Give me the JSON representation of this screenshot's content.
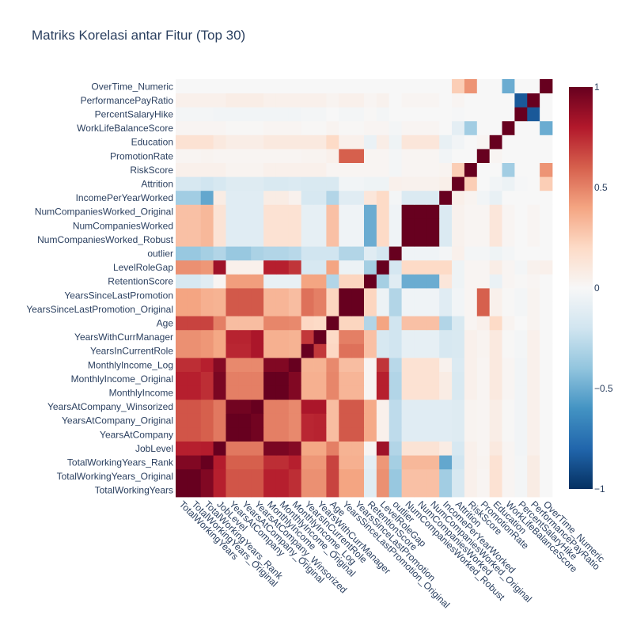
{
  "chart_data": {
    "type": "heatmap",
    "title": "Matriks Korelasi antar Fitur (Top 30)",
    "x_labels": [
      "TotalWorkingYears",
      "TotalWorkingYears_Original",
      "TotalWorkingYears_Rank",
      "JobLevel",
      "YearsAtCompany",
      "YearsAtCompany_Original",
      "YearsAtCompany_Winsorized",
      "MonthlyIncome",
      "MonthlyIncome_Original",
      "MonthlyIncome_Log",
      "YearsInCurrentRole",
      "YearsWithCurrManager",
      "Age",
      "YearsSinceLastPromotion_Original",
      "YearsSinceLastPromotion",
      "RetentionScore",
      "LevelRoleGap",
      "outlier",
      "NumCompaniesWorked_Robust",
      "NumCompaniesWorked",
      "NumCompaniesWorked_Original",
      "IncomePerYearWorked",
      "Attrition",
      "RiskScore",
      "PromotionRate",
      "Education",
      "WorkLifeBalanceScore",
      "PercentSalaryHike",
      "PerformancePayRatio",
      "OverTime_Numeric"
    ],
    "y_labels": [
      "TotalWorkingYears",
      "TotalWorkingYears_Original",
      "TotalWorkingYears_Rank",
      "JobLevel",
      "YearsAtCompany",
      "YearsAtCompany_Original",
      "YearsAtCompany_Winsorized",
      "MonthlyIncome",
      "MonthlyIncome_Original",
      "MonthlyIncome_Log",
      "YearsInCurrentRole",
      "YearsWithCurrManager",
      "Age",
      "YearsSinceLastPromotion_Original",
      "YearsSinceLastPromotion",
      "RetentionScore",
      "LevelRoleGap",
      "outlier",
      "NumCompaniesWorked_Robust",
      "NumCompaniesWorked",
      "NumCompaniesWorked_Original",
      "IncomePerYearWorked",
      "Attrition",
      "RiskScore",
      "PromotionRate",
      "Education",
      "WorkLifeBalanceScore",
      "PercentSalaryHike",
      "PerformancePayRatio",
      "OverTime_Numeric"
    ],
    "z": [
      [
        1,
        1,
        0.93,
        0.78,
        0.63,
        0.63,
        0.63,
        0.78,
        0.78,
        0.74,
        0.46,
        0.46,
        0.68,
        0.4,
        0.4,
        -0.12,
        0.46,
        -0.38,
        0.3,
        0.3,
        0.3,
        -0.35,
        -0.17,
        0.05,
        0.02,
        0.15,
        0.02,
        -0.02,
        0.08,
        0.0
      ],
      [
        1,
        1,
        0.93,
        0.78,
        0.63,
        0.63,
        0.63,
        0.78,
        0.78,
        0.74,
        0.46,
        0.46,
        0.68,
        0.4,
        0.4,
        -0.12,
        0.46,
        -0.38,
        0.3,
        0.3,
        0.3,
        -0.35,
        -0.17,
        0.05,
        0.02,
        0.15,
        0.02,
        -0.02,
        0.08,
        0.0
      ],
      [
        0.93,
        0.93,
        1,
        0.79,
        0.6,
        0.6,
        0.6,
        0.74,
        0.74,
        0.78,
        0.44,
        0.44,
        0.68,
        0.36,
        0.36,
        -0.1,
        0.44,
        -0.34,
        0.33,
        0.33,
        0.33,
        -0.52,
        -0.2,
        0.05,
        0.03,
        0.15,
        0.02,
        -0.02,
        0.08,
        0.0
      ],
      [
        0.78,
        0.78,
        0.79,
        1,
        0.53,
        0.53,
        0.53,
        0.95,
        0.95,
        0.92,
        0.39,
        0.39,
        0.51,
        0.35,
        0.35,
        0.02,
        0.85,
        -0.3,
        0.14,
        0.14,
        0.14,
        0.08,
        -0.17,
        0.05,
        0.02,
        0.1,
        0.02,
        -0.03,
        0.05,
        0.0
      ],
      [
        0.63,
        0.63,
        0.6,
        0.53,
        1,
        1,
        0.97,
        0.51,
        0.51,
        0.48,
        0.76,
        0.77,
        0.31,
        0.62,
        0.62,
        0.38,
        0.05,
        -0.26,
        -0.12,
        -0.12,
        -0.12,
        -0.12,
        -0.13,
        0.03,
        0.02,
        0.07,
        0.01,
        -0.03,
        0.05,
        0.0
      ],
      [
        0.63,
        0.63,
        0.6,
        0.53,
        1,
        1,
        0.97,
        0.51,
        0.51,
        0.48,
        0.76,
        0.77,
        0.31,
        0.62,
        0.62,
        0.38,
        0.05,
        -0.26,
        -0.12,
        -0.12,
        -0.12,
        -0.12,
        -0.13,
        0.03,
        0.02,
        0.07,
        0.01,
        -0.03,
        0.05,
        0.0
      ],
      [
        0.63,
        0.63,
        0.6,
        0.53,
        0.97,
        0.97,
        1,
        0.51,
        0.51,
        0.48,
        0.82,
        0.82,
        0.31,
        0.62,
        0.62,
        0.38,
        0.05,
        -0.26,
        -0.12,
        -0.12,
        -0.12,
        -0.12,
        -0.13,
        0.03,
        0.02,
        0.07,
        0.01,
        -0.03,
        0.05,
        0.0
      ],
      [
        0.78,
        0.78,
        0.74,
        0.95,
        0.51,
        0.51,
        0.51,
        1,
        1,
        0.93,
        0.36,
        0.36,
        0.49,
        0.34,
        0.34,
        0.02,
        0.78,
        -0.3,
        0.15,
        0.15,
        0.15,
        0.08,
        -0.16,
        0.05,
        0.02,
        0.1,
        0.02,
        -0.03,
        0.05,
        0.0
      ],
      [
        0.78,
        0.78,
        0.74,
        0.95,
        0.51,
        0.51,
        0.51,
        1,
        1,
        0.93,
        0.36,
        0.36,
        0.49,
        0.34,
        0.34,
        0.02,
        0.78,
        -0.3,
        0.15,
        0.15,
        0.15,
        0.08,
        -0.16,
        0.05,
        0.02,
        0.1,
        0.02,
        -0.03,
        0.05,
        0.0
      ],
      [
        0.74,
        0.74,
        0.78,
        0.92,
        0.48,
        0.48,
        0.48,
        0.93,
        0.93,
        1,
        0.35,
        0.35,
        0.48,
        0.31,
        0.31,
        0.02,
        0.72,
        -0.28,
        0.15,
        0.15,
        0.15,
        0.04,
        -0.15,
        0.05,
        0.02,
        0.1,
        0.02,
        -0.03,
        0.05,
        0.0
      ],
      [
        0.46,
        0.46,
        0.44,
        0.39,
        0.76,
        0.76,
        0.82,
        0.36,
        0.36,
        0.35,
        1,
        0.71,
        0.21,
        0.55,
        0.55,
        0.3,
        -0.17,
        -0.2,
        -0.09,
        -0.09,
        -0.09,
        -0.17,
        -0.16,
        0.05,
        0.03,
        0.1,
        0.01,
        -0.02,
        0.05,
        0.0
      ],
      [
        0.46,
        0.46,
        0.44,
        0.39,
        0.77,
        0.77,
        0.82,
        0.36,
        0.36,
        0.35,
        0.71,
        1,
        0.2,
        0.51,
        0.51,
        0.3,
        -0.17,
        -0.2,
        -0.09,
        -0.09,
        -0.09,
        -0.17,
        -0.16,
        0.05,
        0.03,
        0.1,
        0.01,
        -0.02,
        0.05,
        0.0
      ],
      [
        0.68,
        0.68,
        0.68,
        0.51,
        0.31,
        0.31,
        0.31,
        0.49,
        0.49,
        0.48,
        0.21,
        0.2,
        1,
        0.22,
        0.22,
        -0.3,
        0.4,
        -0.2,
        0.3,
        0.3,
        0.3,
        -0.3,
        -0.16,
        0.02,
        0.05,
        0.2,
        0.03,
        0.0,
        0.03,
        0.0
      ],
      [
        0.4,
        0.4,
        0.36,
        0.35,
        0.62,
        0.62,
        0.62,
        0.34,
        0.34,
        0.31,
        0.55,
        0.51,
        0.22,
        1,
        1,
        0.22,
        -0.06,
        -0.3,
        -0.04,
        -0.04,
        -0.04,
        -0.12,
        -0.03,
        0.02,
        0.6,
        0.05,
        0.01,
        -0.02,
        0.03,
        0.0
      ],
      [
        0.4,
        0.4,
        0.36,
        0.35,
        0.62,
        0.62,
        0.62,
        0.34,
        0.34,
        0.31,
        0.55,
        0.51,
        0.22,
        1,
        1,
        0.22,
        -0.06,
        -0.3,
        -0.04,
        -0.04,
        -0.04,
        -0.12,
        -0.03,
        0.02,
        0.6,
        0.05,
        0.01,
        -0.02,
        0.03,
        0.0
      ],
      [
        -0.17,
        -0.17,
        -0.12,
        0.02,
        0.42,
        0.42,
        0.42,
        -0.08,
        -0.08,
        -0.08,
        0.4,
        0.4,
        -0.3,
        0.22,
        0.22,
        1,
        -0.34,
        -0.12,
        -0.5,
        -0.5,
        -0.5,
        0.12,
        -0.05,
        0.02,
        0.02,
        -0.07,
        0.02,
        0.01,
        0.02,
        0.0
      ],
      [
        0.46,
        0.46,
        0.44,
        0.85,
        0.05,
        0.05,
        0.05,
        0.78,
        0.78,
        0.72,
        -0.17,
        -0.17,
        0.4,
        -0.06,
        -0.06,
        -0.34,
        1,
        -0.18,
        0.2,
        0.2,
        0.2,
        0.2,
        -0.05,
        0.02,
        0.02,
        0.07,
        0.02,
        -0.02,
        0.04,
        0.05
      ],
      [
        -0.38,
        -0.38,
        -0.34,
        -0.3,
        -0.38,
        -0.38,
        -0.32,
        -0.3,
        -0.3,
        -0.28,
        -0.2,
        -0.2,
        -0.2,
        -0.3,
        -0.3,
        -0.12,
        -0.18,
        1,
        -0.04,
        -0.04,
        -0.04,
        -0.02,
        0.05,
        -0.02,
        -0.02,
        -0.05,
        -0.02,
        0.0,
        0.0,
        0.0
      ],
      [
        0.3,
        0.3,
        0.33,
        0.14,
        -0.12,
        -0.12,
        -0.12,
        0.15,
        0.15,
        0.15,
        -0.09,
        -0.09,
        0.3,
        -0.04,
        -0.04,
        -0.5,
        0.2,
        -0.04,
        1,
        1,
        1,
        -0.15,
        0.04,
        0.02,
        0.02,
        0.12,
        0.02,
        0.0,
        0.02,
        0.0
      ],
      [
        0.3,
        0.3,
        0.33,
        0.14,
        -0.12,
        -0.12,
        -0.12,
        0.15,
        0.15,
        0.15,
        -0.09,
        -0.09,
        0.3,
        -0.04,
        -0.04,
        -0.5,
        0.2,
        -0.04,
        1,
        1,
        1,
        -0.15,
        0.04,
        0.02,
        0.02,
        0.12,
        0.02,
        0.0,
        0.02,
        0.0
      ],
      [
        0.3,
        0.3,
        0.33,
        0.14,
        -0.12,
        -0.12,
        -0.12,
        0.15,
        0.15,
        0.15,
        -0.09,
        -0.09,
        0.3,
        -0.04,
        -0.04,
        -0.5,
        0.2,
        -0.04,
        1,
        1,
        1,
        -0.15,
        0.04,
        0.02,
        0.02,
        0.12,
        0.02,
        0.0,
        0.02,
        0.0
      ],
      [
        -0.35,
        -0.35,
        -0.52,
        0.08,
        -0.12,
        -0.12,
        -0.12,
        0.08,
        0.08,
        0.04,
        -0.17,
        -0.17,
        -0.3,
        -0.12,
        -0.12,
        0.12,
        0.2,
        -0.02,
        -0.15,
        -0.15,
        -0.15,
        1,
        0.06,
        0.03,
        -0.03,
        -0.08,
        0.0,
        0.0,
        0.0,
        0.0
      ],
      [
        -0.17,
        -0.17,
        -0.2,
        -0.17,
        -0.13,
        -0.13,
        -0.13,
        -0.16,
        -0.16,
        -0.15,
        -0.16,
        -0.16,
        -0.16,
        -0.03,
        -0.03,
        -0.05,
        -0.05,
        0.05,
        0.04,
        0.04,
        0.04,
        0.06,
        1,
        0.25,
        0.0,
        -0.03,
        -0.06,
        -0.01,
        0.0,
        0.25
      ],
      [
        0.05,
        0.05,
        0.05,
        0.05,
        0.03,
        0.03,
        0.03,
        0.05,
        0.05,
        0.05,
        0.05,
        0.05,
        0.02,
        0.02,
        0.02,
        0.02,
        0.02,
        -0.02,
        0.02,
        0.02,
        0.02,
        0.03,
        0.25,
        1,
        0.0,
        0.0,
        -0.35,
        0.0,
        0.0,
        0.45
      ],
      [
        0.02,
        0.02,
        0.03,
        0.02,
        0.02,
        0.02,
        0.02,
        0.02,
        0.02,
        0.02,
        0.03,
        0.03,
        0.05,
        0.6,
        0.6,
        0.02,
        0.02,
        -0.02,
        0.02,
        0.02,
        0.02,
        -0.03,
        0.0,
        0.0,
        1,
        0.02,
        0.0,
        0.0,
        0.0,
        0.0
      ],
      [
        0.15,
        0.15,
        0.15,
        0.1,
        0.07,
        0.07,
        0.07,
        0.1,
        0.1,
        0.1,
        0.1,
        0.1,
        0.2,
        0.05,
        0.05,
        -0.07,
        0.07,
        -0.05,
        0.12,
        0.12,
        0.12,
        -0.08,
        -0.03,
        0.0,
        0.02,
        1,
        0.0,
        0.0,
        0.0,
        0.0
      ],
      [
        0.02,
        0.02,
        0.02,
        0.02,
        0.01,
        0.01,
        0.01,
        0.02,
        0.02,
        0.02,
        0.01,
        0.01,
        0.03,
        0.01,
        0.01,
        0.02,
        0.02,
        -0.02,
        0.02,
        0.02,
        0.02,
        0.0,
        -0.1,
        -0.35,
        0.0,
        0.0,
        1,
        0.0,
        0.0,
        -0.5
      ],
      [
        -0.02,
        -0.02,
        -0.02,
        -0.03,
        -0.03,
        -0.03,
        -0.03,
        -0.03,
        -0.03,
        -0.03,
        -0.02,
        -0.02,
        0.0,
        -0.02,
        -0.02,
        0.01,
        -0.02,
        0.0,
        0.0,
        0.0,
        0.0,
        0.0,
        -0.01,
        0.0,
        0.0,
        0.0,
        0.0,
        1,
        -0.85,
        0.0
      ],
      [
        0.05,
        0.05,
        0.05,
        0.05,
        0.07,
        0.07,
        0.07,
        0.05,
        0.05,
        0.05,
        0.05,
        0.05,
        0.03,
        0.05,
        0.05,
        0.02,
        0.04,
        0.0,
        0.02,
        0.02,
        0.02,
        0.0,
        0.02,
        0.0,
        0.0,
        0.0,
        0.0,
        -0.85,
        1,
        0.0
      ],
      [
        0.0,
        0.0,
        0.0,
        0.0,
        0.0,
        0.0,
        0.0,
        0.0,
        0.0,
        0.0,
        0.0,
        0.0,
        0.0,
        0.0,
        0.0,
        0.0,
        0.0,
        0.0,
        0.0,
        0.0,
        0.0,
        0.0,
        0.25,
        0.45,
        0.0,
        0.0,
        -0.5,
        0.0,
        0.0,
        1
      ]
    ],
    "zmin": -1,
    "zmax": 1,
    "colorscale": [
      "#053061",
      "#2166ac",
      "#4393c3",
      "#92c5de",
      "#d1e5f0",
      "#f7f7f7",
      "#fddbc7",
      "#f4a582",
      "#d6604d",
      "#b2182b",
      "#67001f"
    ],
    "colorbar_ticks": [
      {
        "value": 1,
        "label": "1"
      },
      {
        "value": 0.5,
        "label": "0.5"
      },
      {
        "value": 0,
        "label": "0"
      },
      {
        "value": -0.5,
        "label": "−0.5"
      },
      {
        "value": -1,
        "label": "−1"
      }
    ],
    "colorbar_position": "right"
  }
}
